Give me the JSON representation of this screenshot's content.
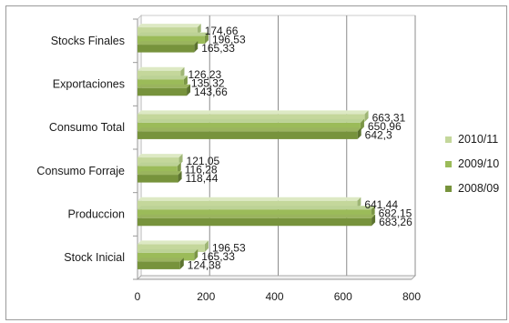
{
  "chart_data": {
    "type": "bar",
    "orientation": "horizontal",
    "categories": [
      "Stocks Finales",
      "Exportaciones",
      "Consumo Total",
      "Consumo Forraje",
      "Produccion",
      "Stock Inicial"
    ],
    "series": [
      {
        "name": "2010/11",
        "color": "#c4d79b",
        "values": [
          174.66,
          126.23,
          663.31,
          121.05,
          641.44,
          196.53
        ],
        "labels": [
          "174,66",
          "126,23",
          "663,31",
          "121,05",
          "641,44",
          "196,53"
        ]
      },
      {
        "name": "2009/10",
        "color": "#9bbb59",
        "values": [
          196.53,
          135.32,
          650.96,
          116.28,
          682.15,
          165.33
        ],
        "labels": [
          "196,53",
          "135,32",
          "650,96",
          "116,28",
          "682,15",
          "165,33"
        ]
      },
      {
        "name": "2008/09",
        "color": "#77933c",
        "values": [
          165.33,
          143.66,
          642.3,
          118.44,
          683.26,
          124.38
        ],
        "labels": [
          "165,33",
          "143,66",
          "642,3",
          "118,44",
          "683,26",
          "124,38"
        ]
      }
    ],
    "xlim": [
      0,
      800
    ],
    "xticks": [
      0,
      200,
      400,
      600,
      800
    ],
    "xtick_labels": [
      "0",
      "200",
      "400",
      "600",
      "800"
    ],
    "grid": "vertical",
    "legend_position": "right",
    "title": "",
    "xlabel": "",
    "ylabel": ""
  }
}
